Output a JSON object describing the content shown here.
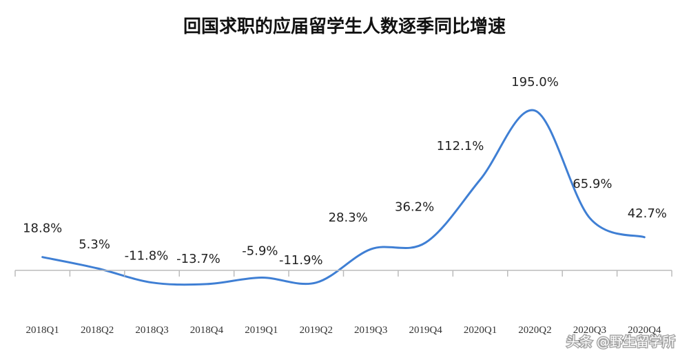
{
  "chart_data": {
    "type": "line",
    "title": "回国求职的应届留学生人数逐季同比增速",
    "categories": [
      "2018Q1",
      "2018Q2",
      "2018Q3",
      "2018Q4",
      "2019Q1",
      "2019Q2",
      "2019Q3",
      "2019Q4",
      "2020Q1",
      "2020Q2",
      "2020Q3",
      "2020Q4"
    ],
    "values": [
      18.8,
      5.3,
      -11.8,
      -13.7,
      -5.9,
      -11.9,
      28.3,
      36.2,
      112.1,
      195.0,
      65.9,
      42.7
    ],
    "data_labels": [
      "18.8%",
      "5.3%",
      "-11.8%",
      "-13.7%",
      "-5.9%",
      "-11.9%",
      "28.3%",
      "36.2%",
      "112.1%",
      "195.0%",
      "65.9%",
      "42.7%"
    ],
    "ylim": [
      -20,
      200
    ],
    "grid": false,
    "line_color": "#3f7fd4",
    "axis_color": "#bbbbbb"
  },
  "watermark": "头条 @野生留学所"
}
